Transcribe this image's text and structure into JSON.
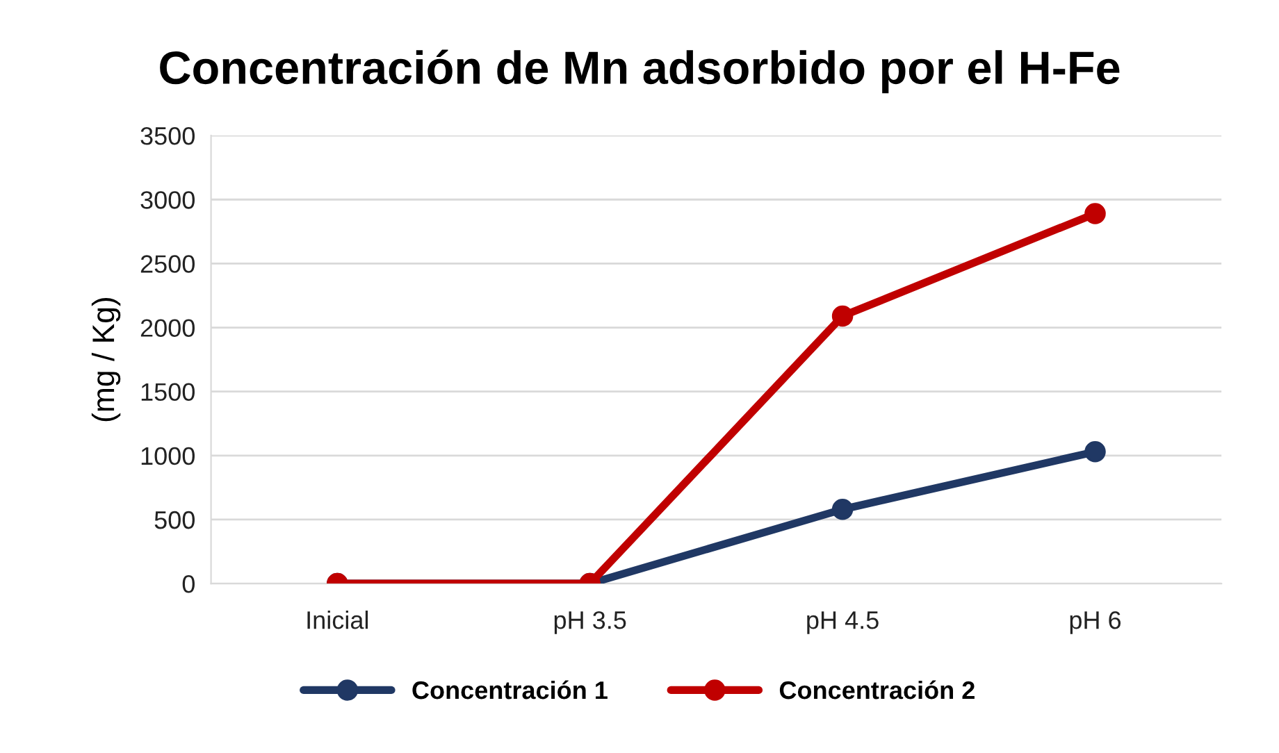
{
  "chart_data": {
    "type": "line",
    "title": "Concentración de Mn adsorbido por el H-Fe",
    "ylabel": "(mg / Kg)",
    "categories": [
      "Inicial",
      "pH 3.5",
      "pH 4.5",
      "pH 6"
    ],
    "series": [
      {
        "name": "Concentración 1",
        "color": "#203864",
        "values": [
          0,
          0,
          580,
          1030
        ]
      },
      {
        "name": "Concentración 2",
        "color": "#c00000",
        "values": [
          0,
          0,
          2090,
          2890
        ]
      }
    ],
    "ylim": [
      0,
      3500
    ],
    "yticks": [
      0,
      500,
      1000,
      1500,
      2000,
      2500,
      3000,
      3500
    ],
    "grid": "y",
    "legend": "bottom",
    "marker": "circle",
    "line_style": "solid"
  }
}
